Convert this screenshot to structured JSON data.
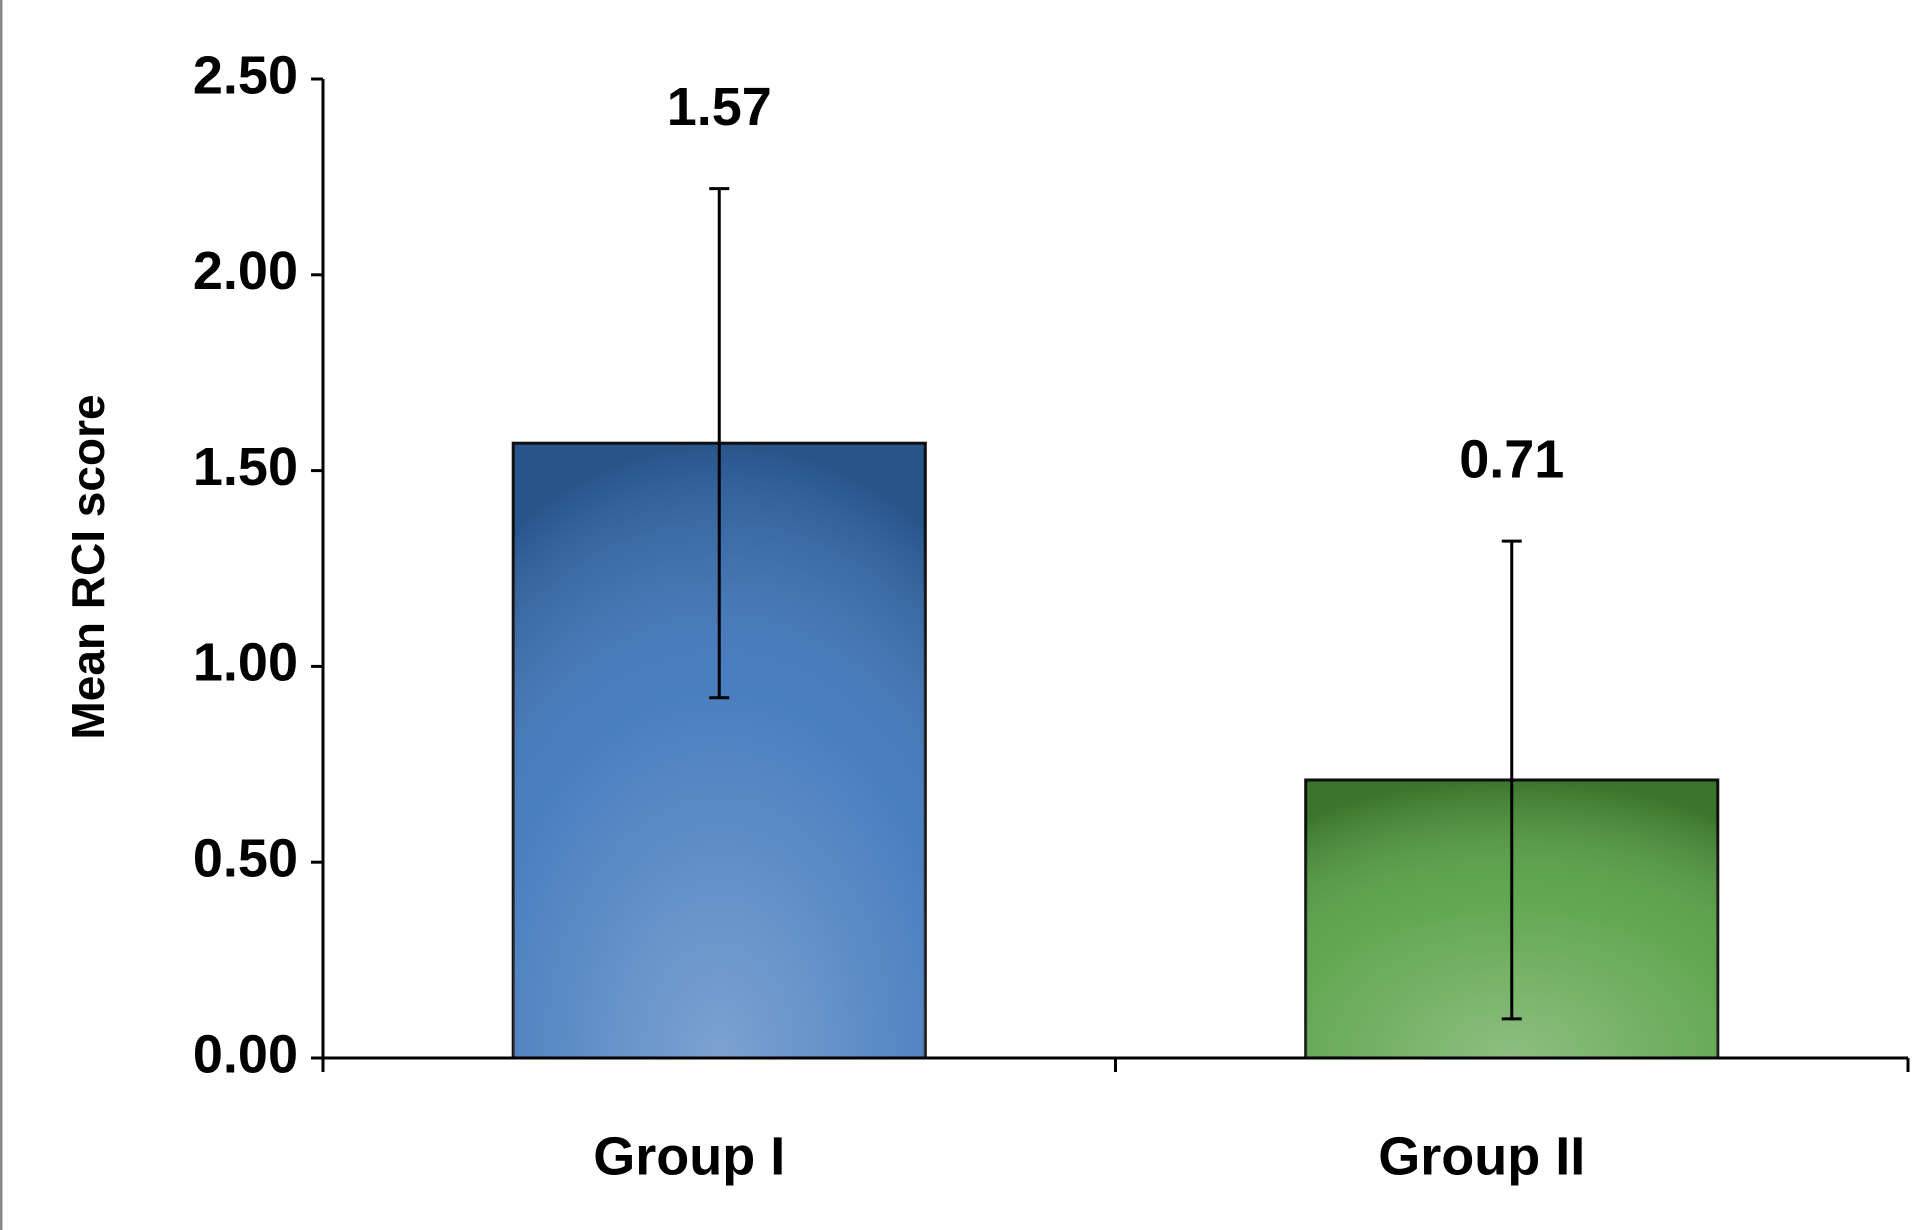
{
  "chart_data": {
    "type": "bar",
    "y_label": "Mean RCI score",
    "categories": [
      "Group I",
      "Group II"
    ],
    "values": [
      1.57,
      0.71
    ],
    "errors": [
      0.65,
      0.61
    ],
    "colors": [
      "#3570b8",
      "#4f9c3c"
    ],
    "ylim": [
      0,
      2.5
    ],
    "yticks": [
      {
        "value": 0,
        "label": "0.00"
      },
      {
        "value": 0.5,
        "label": "0.50"
      },
      {
        "value": 1,
        "label": "1.00"
      },
      {
        "value": 1.5,
        "label": "1.50"
      },
      {
        "value": 2,
        "label": "2.00"
      },
      {
        "value": 2.5,
        "label": "2.50"
      }
    ],
    "grid": false
  }
}
